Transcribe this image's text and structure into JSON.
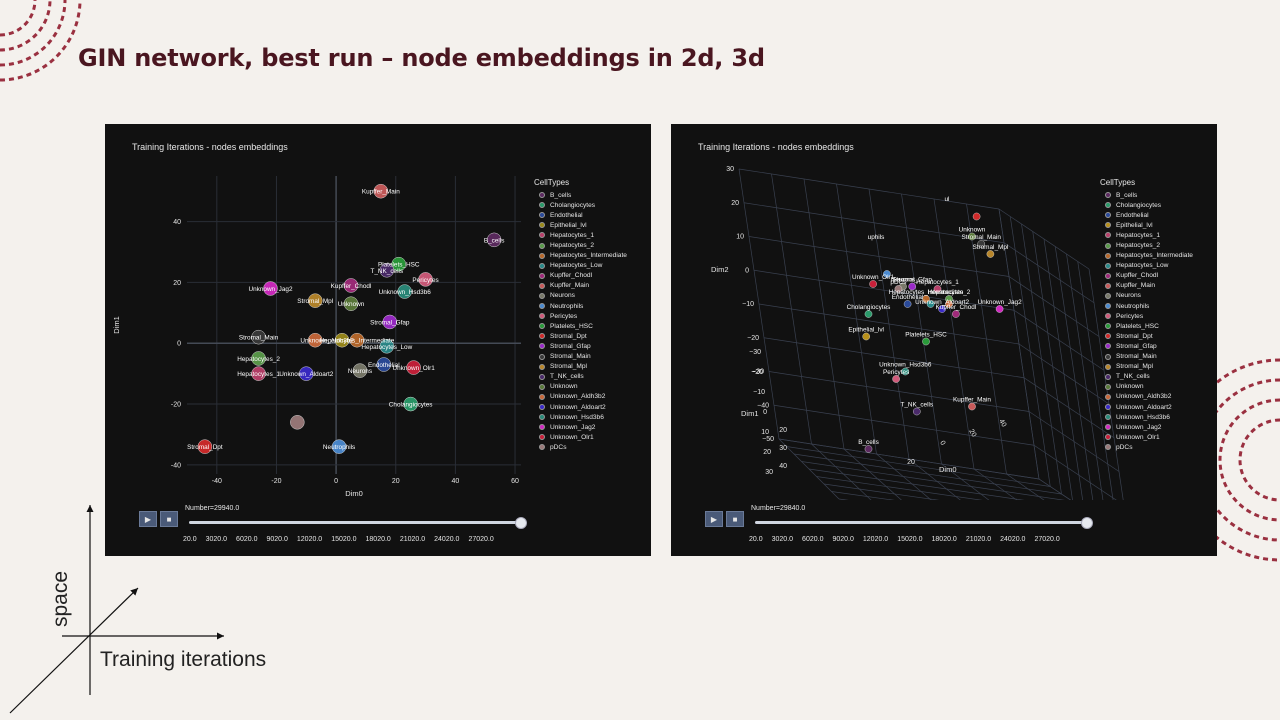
{
  "slide": {
    "title": "GIN network, best run – node embeddings in 2d, 3d",
    "axis_space": "space",
    "axis_training": "Training iterations"
  },
  "colors": {
    "background": "#f4f1ed",
    "title": "#4a1620",
    "panel": "#111111",
    "deco": "#9a3040"
  },
  "chart_data": [
    {
      "type": "scatter",
      "title": "Training Iterations - nodes embeddings",
      "xlabel": "Dim0",
      "ylabel": "Dim1",
      "xlim": [
        -50,
        62
      ],
      "ylim": [
        -43,
        55
      ],
      "xticks": [
        -40,
        -20,
        0,
        20,
        40,
        60
      ],
      "yticks": [
        -40,
        -20,
        0,
        20,
        40
      ],
      "grid": true,
      "legend_title": "CellTypes",
      "legend_position": "right",
      "slider_label": "Number=29940.0",
      "slider_value": 29940,
      "slider_ticks": [
        "20.0",
        "3020.0",
        "6020.0",
        "9020.0",
        "12020.0",
        "15020.0",
        "18020.0",
        "21020.0",
        "24020.0",
        "27020.0"
      ],
      "series": [
        {
          "name": "B_cells",
          "color": "#5c2a60",
          "x": 53,
          "y": 34
        },
        {
          "name": "Cholangiocytes",
          "color": "#2a9a6a",
          "x": 25,
          "y": -20
        },
        {
          "name": "Endothelial",
          "color": "#2a4a9a",
          "x": 16,
          "y": -7
        },
        {
          "name": "Epithelial_lvl",
          "color": "#9a8a1a",
          "x": 2,
          "y": 1
        },
        {
          "name": "Hepatocytes_1",
          "color": "#b8406a",
          "x": -26,
          "y": -10
        },
        {
          "name": "Hepatocytes_2",
          "color": "#5a9a4a",
          "x": -26,
          "y": -5
        },
        {
          "name": "Hepatocytes_Intermediate",
          "color": "#b8682a",
          "x": 7,
          "y": 1
        },
        {
          "name": "Hepatocytes_Low",
          "color": "#2a8a8a",
          "x": 17,
          "y": -1
        },
        {
          "name": "Kupffer_Chodl",
          "color": "#a02a7a",
          "x": 5,
          "y": 19
        },
        {
          "name": "Kupffer_Main",
          "color": "#c85a5a",
          "x": 15,
          "y": 50
        },
        {
          "name": "Neurons",
          "color": "#7a7a6a",
          "x": 8,
          "y": -9
        },
        {
          "name": "Neutrophils",
          "color": "#4a8ad0",
          "x": 1,
          "y": -34
        },
        {
          "name": "Pericytes",
          "color": "#d05a7a",
          "x": 30,
          "y": 21
        },
        {
          "name": "Platelets_HSC",
          "color": "#2a9a3a",
          "x": 21,
          "y": 26
        },
        {
          "name": "Stromal_Dpt",
          "color": "#d02a2a",
          "x": -44,
          "y": -34
        },
        {
          "name": "Stromal_Gfap",
          "color": "#9a2ac8",
          "x": 18,
          "y": 7
        },
        {
          "name": "Stromal_Main",
          "color": "#3a3a3a",
          "x": -26,
          "y": 2
        },
        {
          "name": "Stromal_Mpl",
          "color": "#b8862a",
          "x": -7,
          "y": 14
        },
        {
          "name": "T_NK_cells",
          "color": "#4a2a6a",
          "x": 17,
          "y": 24
        },
        {
          "name": "Unknown",
          "color": "#5a7a3a",
          "x": 5,
          "y": 13
        },
        {
          "name": "Unknown_Aldh3b2",
          "color": "#c8683a",
          "x": -7,
          "y": 1
        },
        {
          "name": "Unknown_Aldoart2",
          "color": "#3a2ac8",
          "x": -10,
          "y": -10
        },
        {
          "name": "Unknown_Hsd3b6",
          "color": "#2a8a7a",
          "x": 23,
          "y": 17
        },
        {
          "name": "Unknown_Jag2",
          "color": "#d02ac0",
          "x": -22,
          "y": 18
        },
        {
          "name": "Unknown_Olr1",
          "color": "#c8203a",
          "x": 26,
          "y": -8
        },
        {
          "name": "pDCs",
          "color": "#9a7a7a",
          "x": -13,
          "y": -26
        }
      ],
      "annotations": [
        {
          "text": "B_cells",
          "x": 53,
          "y": 34
        },
        {
          "text": "Cholangiocytes",
          "x": 25,
          "y": -20
        },
        {
          "text": "Endothelial",
          "x": 16,
          "y": -7
        },
        {
          "text": "Hepatocytes_1",
          "x": -26,
          "y": -10
        },
        {
          "text": "Hepatocytes_2",
          "x": -26,
          "y": -5
        },
        {
          "text": "Hepatocytes_Intermediate",
          "x": 7,
          "y": 1
        },
        {
          "text": "Hepatocytes_Low",
          "x": 17,
          "y": -1
        },
        {
          "text": "Kupffer_Chodl",
          "x": 5,
          "y": 19
        },
        {
          "text": "Kupffer_Main",
          "x": 15,
          "y": 50
        },
        {
          "text": "Neurons",
          "x": 8,
          "y": -9
        },
        {
          "text": "Neutrophils",
          "x": 1,
          "y": -34
        },
        {
          "text": "Pericytes",
          "x": 30,
          "y": 21
        },
        {
          "text": "Platelets_HSC",
          "x": 21,
          "y": 26
        },
        {
          "text": "Stromal_Dpt",
          "x": -44,
          "y": -34
        },
        {
          "text": "Stromal_Gfap",
          "x": 18,
          "y": 7
        },
        {
          "text": "Stromal_Main",
          "x": -26,
          "y": 2
        },
        {
          "text": "Stromal_Mpl",
          "x": -7,
          "y": 14
        },
        {
          "text": "T_NK_cells",
          "x": 17,
          "y": 24
        },
        {
          "text": "Unknown",
          "x": 5,
          "y": 13
        },
        {
          "text": "Unknown_Aldh3b2",
          "x": -3,
          "y": 1
        },
        {
          "text": "Unknown_Aldoart2",
          "x": -10,
          "y": -10
        },
        {
          "text": "Unknown_Hsd3b6",
          "x": 23,
          "y": 17
        },
        {
          "text": "Unknown_Jag2",
          "x": -22,
          "y": 18
        },
        {
          "text": "Unknown_Olr1",
          "x": 26,
          "y": -8
        }
      ]
    },
    {
      "type": "scatter3d",
      "title": "Training Iterations - nodes embeddings",
      "xlabel": "Dim0",
      "ylabel": "Dim1",
      "zlabel": "Dim2",
      "zticks": [
        "30",
        "20",
        "10",
        "0",
        "−10",
        "−20",
        "−30",
        "−40",
        "−50"
      ],
      "yticks": [
        "−30",
        "−20",
        "−10",
        "0",
        "10",
        "20",
        "30"
      ],
      "xticks": [
        "20",
        "30",
        "40"
      ],
      "dim0_ticks": [
        "40",
        "20",
        "0"
      ],
      "dim0_tick_small": "20",
      "legend_title": "CellTypes",
      "legend_position": "right",
      "slider_label": "Number=29840.0",
      "slider_value": 29840,
      "slider_ticks": [
        "20.0",
        "3020.0",
        "6020.0",
        "9020.0",
        "12020.0",
        "15020.0",
        "18020.0",
        "21020.0",
        "24020.0",
        "27020.0"
      ],
      "series": [
        {
          "name": "B_cells",
          "color": "#5c2a60"
        },
        {
          "name": "Cholangiocytes",
          "color": "#2a9a6a"
        },
        {
          "name": "Endothelial",
          "color": "#2a4a9a"
        },
        {
          "name": "Epithelial_lvl",
          "color": "#b8901a"
        },
        {
          "name": "Hepatocytes_1",
          "color": "#b8406a"
        },
        {
          "name": "Hepatocytes_2",
          "color": "#5a9a4a"
        },
        {
          "name": "Hepatocytes_Intermediate",
          "color": "#b8682a"
        },
        {
          "name": "Hepatocytes_Low",
          "color": "#2a8a8a"
        },
        {
          "name": "Kupffer_Chodl",
          "color": "#a02a7a"
        },
        {
          "name": "Kupffer_Main",
          "color": "#c85a5a"
        },
        {
          "name": "Neurons",
          "color": "#7a7a6a"
        },
        {
          "name": "Neutrophils",
          "color": "#4a8ad0"
        },
        {
          "name": "Pericytes",
          "color": "#d05a7a"
        },
        {
          "name": "Platelets_HSC",
          "color": "#2a9a3a"
        },
        {
          "name": "Stromal_Dpt",
          "color": "#d02a2a"
        },
        {
          "name": "Stromal_Gfap",
          "color": "#9a2ac8"
        },
        {
          "name": "Stromal_Main",
          "color": "#3a3a3a"
        },
        {
          "name": "Stromal_Mpl",
          "color": "#b8862a"
        },
        {
          "name": "T_NK_cells",
          "color": "#4a2a6a"
        },
        {
          "name": "Unknown",
          "color": "#5a7a3a"
        },
        {
          "name": "Unknown_Aldh3b2",
          "color": "#c8683a"
        },
        {
          "name": "Unknown_Aldoart2",
          "color": "#3a2ac8"
        },
        {
          "name": "Unknown_Hsd3b6",
          "color": "#2a8a7a"
        },
        {
          "name": "Unknown_Jag2",
          "color": "#d02ac0"
        },
        {
          "name": "Unknown_Olr1",
          "color": "#c8203a"
        },
        {
          "name": "pDCs",
          "color": "#9a7a7a"
        }
      ],
      "annotations": [
        "Unknown",
        "Stromal_Main",
        "Stromal_Mpl",
        "uphils",
        "Unknown_Olr1",
        "pDCs",
        "Neurons",
        "Stromal_Gfap",
        "Hepatocytes_1",
        "Hepatocytes_Intermediate",
        "Hepatocytes_2",
        "Endothelial",
        "Unknown_Aldoart2",
        "Kupffer_Chodl",
        "Unknown_Jag2",
        "Cholangiocytes",
        "Epithelial_lvl",
        "Platelets_HSC",
        "Unknown_Hsd3b6",
        "Pericytes",
        "Kupffer_Main",
        "T_NK_cells",
        "B_cells",
        "ul"
      ]
    }
  ]
}
